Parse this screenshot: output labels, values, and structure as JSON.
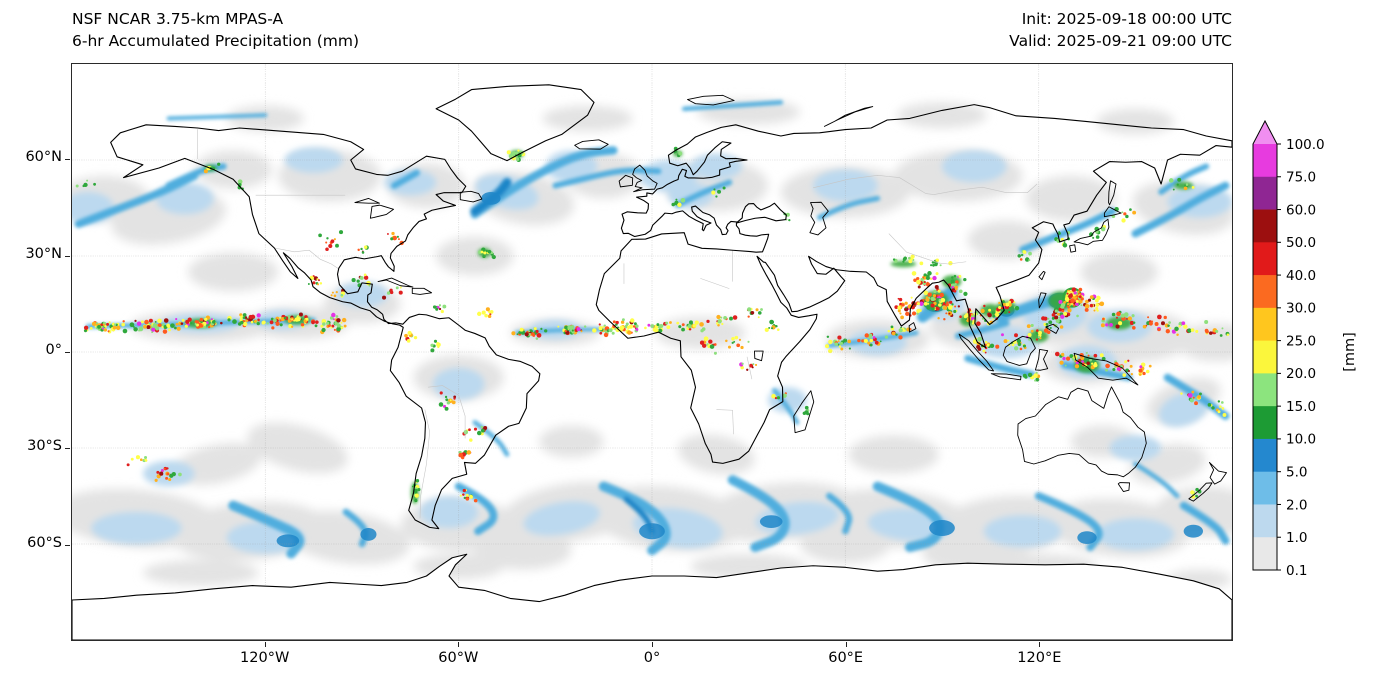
{
  "header": {
    "model_line": "NSF NCAR 3.75-km MPAS-A",
    "product_line": "6-hr Accumulated Precipitation (mm)",
    "init_line": "Init: 2025-09-18 00:00 UTC",
    "valid_line": "Valid: 2025-09-21 09:00 UTC"
  },
  "map": {
    "projection": "equirectangular global",
    "x_ticks": [
      "120°W",
      "60°W",
      "0°",
      "60°E",
      "120°E"
    ],
    "x_tick_lons": [
      -120,
      -60,
      0,
      60,
      120
    ],
    "y_ticks": [
      "60°N",
      "30°N",
      "0°",
      "30°S",
      "60°S"
    ],
    "y_tick_lats": [
      60,
      30,
      0,
      -30,
      -60
    ],
    "extent": {
      "lon_min": -180,
      "lon_max": 180,
      "lat_min": -90,
      "lat_max": 90
    }
  },
  "colorbar": {
    "label": "[mm]",
    "levels": [
      0.1,
      1.0,
      2.0,
      5.0,
      10.0,
      15.0,
      20.0,
      25.0,
      30.0,
      40.0,
      50.0,
      60.0,
      75.0,
      100.0
    ],
    "tick_labels": [
      "0.1",
      "1.0",
      "2.0",
      "5.0",
      "10.0",
      "15.0",
      "20.0",
      "25.0",
      "30.0",
      "40.0",
      "50.0",
      "60.0",
      "75.0",
      "100.0"
    ],
    "colors": [
      "#e8e8e8",
      "#bdd9ee",
      "#6ebde8",
      "#2488cf",
      "#1d9b34",
      "#8ce47e",
      "#fbf63c",
      "#ffc61e",
      "#fb6a20",
      "#e11a1a",
      "#9c0f0f",
      "#8f2693",
      "#e73bdf"
    ],
    "over_color": "#f08ef0",
    "extend": "max"
  },
  "chart_data": {
    "type": "heatmap",
    "title": "6-hr Accumulated Precipitation (mm)",
    "legend_label": "[mm]",
    "legend_levels": [
      0.1,
      1.0,
      2.0,
      5.0,
      10.0,
      15.0,
      20.0,
      25.0,
      30.0,
      40.0,
      50.0,
      60.0,
      75.0,
      100.0
    ],
    "x_ticks": [
      "120°W",
      "60°W",
      "0°",
      "60°E",
      "120°E"
    ],
    "y_ticks": [
      "60°N",
      "30°N",
      "0°",
      "30°S",
      "60°S"
    ]
  }
}
